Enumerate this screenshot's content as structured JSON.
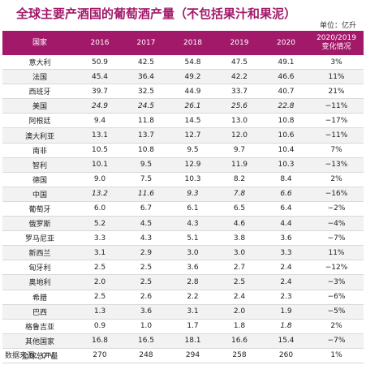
{
  "title": "全球主要产酒国的葡萄酒产量（不包括果汁和果泥）",
  "unit": "单位：亿升",
  "header": {
    "country": "国家",
    "years": [
      "2016",
      "2017",
      "2018",
      "2019",
      "2020"
    ],
    "change_line1": "2020/2019",
    "change_line2": "变化情况"
  },
  "rows": [
    {
      "country": "意大利",
      "v": [
        "50.9",
        "42.5",
        "54.8",
        "47.5",
        "49.1"
      ],
      "change": "3%",
      "italic": [
        false,
        false,
        false,
        false,
        false
      ]
    },
    {
      "country": "法国",
      "v": [
        "45.4",
        "36.4",
        "49.2",
        "42.2",
        "46.6"
      ],
      "change": "11%",
      "italic": [
        false,
        false,
        false,
        false,
        false
      ]
    },
    {
      "country": "西班牙",
      "v": [
        "39.7",
        "32.5",
        "44.9",
        "33.7",
        "40.7"
      ],
      "change": "21%",
      "italic": [
        false,
        false,
        false,
        false,
        false
      ]
    },
    {
      "country": "美国",
      "v": [
        "24.9",
        "24.5",
        "26.1",
        "25.6",
        "22.8"
      ],
      "change": "−11%",
      "italic": [
        true,
        true,
        true,
        true,
        true
      ]
    },
    {
      "country": "阿根廷",
      "v": [
        "9.4",
        "11.8",
        "14.5",
        "13.0",
        "10.8"
      ],
      "change": "−17%",
      "italic": [
        false,
        false,
        false,
        false,
        false
      ]
    },
    {
      "country": "澳大利亚",
      "v": [
        "13.1",
        "13.7",
        "12.7",
        "12.0",
        "10.6"
      ],
      "change": "−11%",
      "italic": [
        false,
        false,
        false,
        false,
        false
      ]
    },
    {
      "country": "南非",
      "v": [
        "10.5",
        "10.8",
        "9.5",
        "9.7",
        "10.4"
      ],
      "change": "7%",
      "italic": [
        false,
        false,
        false,
        false,
        false
      ]
    },
    {
      "country": "智利",
      "v": [
        "10.1",
        "9.5",
        "12.9",
        "11.9",
        "10.3"
      ],
      "change": "−13%",
      "italic": [
        false,
        false,
        false,
        false,
        false
      ]
    },
    {
      "country": "德国",
      "v": [
        "9.0",
        "7.5",
        "10.3",
        "8.2",
        "8.4"
      ],
      "change": "2%",
      "italic": [
        false,
        false,
        false,
        false,
        false
      ]
    },
    {
      "country": "中国",
      "v": [
        "13.2",
        "11.6",
        "9.3",
        "7.8",
        "6.6"
      ],
      "change": "−16%",
      "italic": [
        true,
        true,
        true,
        true,
        true
      ]
    },
    {
      "country": "葡萄牙",
      "v": [
        "6.0",
        "6.7",
        "6.1",
        "6.5",
        "6.4"
      ],
      "change": "−2%",
      "italic": [
        false,
        false,
        false,
        false,
        false
      ]
    },
    {
      "country": "俄罗斯",
      "v": [
        "5.2",
        "4.5",
        "4.3",
        "4.6",
        "4.4"
      ],
      "change": "−4%",
      "italic": [
        false,
        false,
        false,
        false,
        false
      ]
    },
    {
      "country": "罗马尼亚",
      "v": [
        "3.3",
        "4.3",
        "5.1",
        "3.8",
        "3.6"
      ],
      "change": "−7%",
      "italic": [
        false,
        false,
        false,
        false,
        false
      ]
    },
    {
      "country": "新西兰",
      "v": [
        "3.1",
        "2.9",
        "3.0",
        "3.0",
        "3.3"
      ],
      "change": "11%",
      "italic": [
        false,
        false,
        false,
        false,
        false
      ]
    },
    {
      "country": "匈牙利",
      "v": [
        "2.5",
        "2.5",
        "3.6",
        "2.7",
        "2.4"
      ],
      "change": "−12%",
      "italic": [
        false,
        false,
        false,
        false,
        false
      ]
    },
    {
      "country": "奥地利",
      "v": [
        "2.0",
        "2.5",
        "2.8",
        "2.5",
        "2.4"
      ],
      "change": "−3%",
      "italic": [
        false,
        false,
        false,
        false,
        false
      ]
    },
    {
      "country": "希腊",
      "v": [
        "2.5",
        "2.6",
        "2.2",
        "2.4",
        "2.3"
      ],
      "change": "−6%",
      "italic": [
        false,
        false,
        false,
        false,
        false
      ]
    },
    {
      "country": "巴西",
      "v": [
        "1.3",
        "3.6",
        "3.1",
        "2.0",
        "1.9"
      ],
      "change": "−5%",
      "italic": [
        false,
        false,
        false,
        false,
        false
      ]
    },
    {
      "country": "格鲁吉亚",
      "v": [
        "0.9",
        "1.0",
        "1.7",
        "1.8",
        "1.8"
      ],
      "change": "2%",
      "italic": [
        false,
        false,
        false,
        false,
        true
      ]
    },
    {
      "country": "其他国家",
      "v": [
        "16.8",
        "16.5",
        "18.1",
        "16.6",
        "15.4"
      ],
      "change": "−7%",
      "italic": [
        false,
        false,
        false,
        false,
        false
      ]
    },
    {
      "country": "全球总产量",
      "v": [
        "270",
        "248",
        "294",
        "258",
        "260"
      ],
      "change": "1%",
      "italic": [
        false,
        false,
        false,
        false,
        false
      ]
    }
  ],
  "source": "数据来源：OIV",
  "colors": {
    "accent": "#a2196a",
    "stripe": "#f2f2f2"
  }
}
